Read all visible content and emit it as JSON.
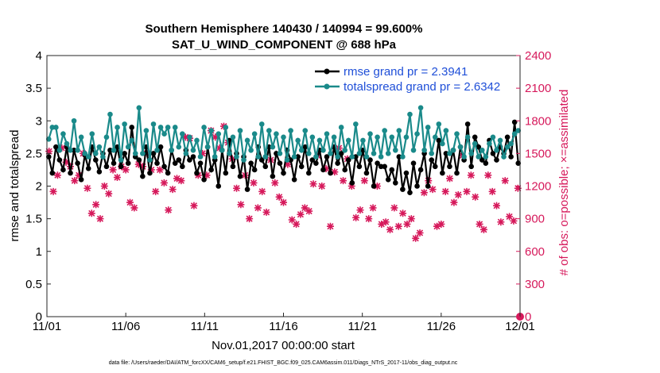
{
  "chart_data": {
    "type": "line",
    "title_line1": "Southern Hemisphere 140430 / 140994 = 99.600%",
    "title_line2": "SAT_U_WIND_COMPONENT @ 688 hPa",
    "xlabel": "Nov.01,2017 00:00:00 start",
    "ylabel_left": "rmse and totalspread",
    "ylabel_right": "# of obs: o=possible; ×=assimilated",
    "footer": "data file: /Users/raeder/DAI/ATM_forcXX/CAM6_setup/f.e21.FHIST_BGC.f09_025.CAM6assim.011/Diags_NTrS_2017-11/obs_diag_output.nc",
    "xlim": [
      0,
      30
    ],
    "ylim_left": [
      0,
      4
    ],
    "ylim_right": [
      0,
      2400
    ],
    "x_ticks": [
      0,
      5,
      10,
      15,
      20,
      25,
      30
    ],
    "x_tick_labels": [
      "11/01",
      "11/06",
      "11/11",
      "11/16",
      "11/21",
      "11/26",
      "12/01"
    ],
    "y_left_ticks": [
      "0",
      "0.5",
      "1",
      "1.5",
      "2",
      "2.5",
      "3",
      "3.5",
      "4"
    ],
    "y_right_ticks": [
      "0",
      "300",
      "600",
      "900",
      "1200",
      "1500",
      "1800",
      "2100",
      "2400"
    ],
    "colors": {
      "rmse": "#000000",
      "spread": "#1a8a8a",
      "obs": "#d6195b",
      "right_axis": "#d6195b",
      "legend_text": "#1f4fd8"
    },
    "legend": [
      {
        "label": "rmse grand pr = 2.3941",
        "color": "#000000"
      },
      {
        "label": "totalspread grand pr = 2.6342",
        "color": "#1a8a8a"
      }
    ],
    "series": [
      {
        "name": "rmse",
        "axis": "left",
        "values": [
          2.45,
          2.2,
          2.6,
          2.4,
          2.25,
          2.6,
          2.2,
          2.55,
          2.35,
          2.1,
          2.48,
          2.27,
          2.6,
          2.4,
          2.22,
          2.5,
          2.3,
          2.55,
          2.35,
          2.6,
          2.3,
          2.5,
          2.35,
          2.9,
          2.45,
          2.4,
          2.15,
          2.6,
          2.2,
          2.5,
          2.35,
          2.6,
          2.3,
          2.2,
          2.55,
          2.35,
          2.4,
          2.3,
          2.55,
          2.4,
          2.45,
          2.2,
          2.35,
          2.1,
          2.6,
          2.25,
          2.4,
          2.0,
          2.55,
          2.2,
          2.7,
          2.3,
          2.5,
          2.15,
          2.45,
          1.95,
          2.35,
          2.25,
          2.6,
          2.4,
          2.3,
          2.6,
          2.15,
          2.5,
          2.35,
          2.2,
          2.55,
          2.4,
          2.1,
          2.45,
          2.3,
          2.6,
          2.2,
          2.4,
          2.35,
          2.55,
          2.25,
          2.45,
          2.2,
          2.6,
          2.35,
          2.5,
          2.25,
          2.4,
          2.05,
          2.45,
          2.3,
          2.55,
          2.2,
          2.4,
          2.0,
          2.35,
          2.3,
          2.3,
          2.1,
          2.25,
          2.05,
          2.45,
          1.95,
          2.2,
          1.9,
          2.35,
          2.0,
          2.25,
          2.5,
          2.0,
          2.4,
          2.3,
          2.7,
          2.2,
          2.5,
          2.3,
          2.55,
          2.2,
          2.6,
          2.4,
          2.95,
          2.3,
          2.75,
          2.6,
          2.4,
          2.35,
          2.7,
          2.5,
          2.4,
          2.6,
          2.5,
          2.75,
          2.45,
          2.98,
          2.35
        ]
      },
      {
        "name": "totalspread",
        "axis": "left",
        "values": [
          2.72,
          2.9,
          2.9,
          2.55,
          2.8,
          2.65,
          2.55,
          3.0,
          2.55,
          2.75,
          2.5,
          2.45,
          2.8,
          2.5,
          2.6,
          2.45,
          2.75,
          3.1,
          2.55,
          2.9,
          2.4,
          2.95,
          2.6,
          2.7,
          2.5,
          3.2,
          2.5,
          2.85,
          2.4,
          2.95,
          2.55,
          2.9,
          2.8,
          2.9,
          2.55,
          2.9,
          2.6,
          2.8,
          2.5,
          2.75,
          2.55,
          2.7,
          2.45,
          2.9,
          2.6,
          2.85,
          2.45,
          2.8,
          2.55,
          2.9,
          2.5,
          2.75,
          2.45,
          2.85,
          2.4,
          2.7,
          2.55,
          2.8,
          2.45,
          2.95,
          2.45,
          2.85,
          2.6,
          2.8,
          2.5,
          2.75,
          2.4,
          2.85,
          2.45,
          2.7,
          2.55,
          2.85,
          2.5,
          2.75,
          2.45,
          2.7,
          2.55,
          2.8,
          2.5,
          2.75,
          2.45,
          2.9,
          2.55,
          2.7,
          2.45,
          2.95,
          2.5,
          2.7,
          2.45,
          2.8,
          2.5,
          2.75,
          2.45,
          2.85,
          2.5,
          2.75,
          2.55,
          2.85,
          2.45,
          2.75,
          3.1,
          2.55,
          2.8,
          3.2,
          2.55,
          2.9,
          2.5,
          2.75,
          2.95,
          2.65,
          2.85,
          2.5,
          2.55,
          2.8,
          2.6,
          2.45,
          2.75,
          2.5,
          2.65,
          2.45,
          2.55,
          2.45,
          2.65,
          2.75,
          2.55,
          2.7,
          2.45,
          2.6,
          2.65,
          2.8,
          2.85
        ]
      },
      {
        "name": "assimilated",
        "axis": "right",
        "values": [
          1520,
          1150,
          1300,
          1550,
          1420,
          1380,
          1250,
          1300,
          1500,
          1180,
          950,
          1030,
          900,
          1200,
          1130,
          1350,
          1280,
          1380,
          1350,
          1050,
          1000,
          1400,
          1380,
          1500,
          1350,
          1150,
          1350,
          1230,
          980,
          1170,
          1270,
          1250,
          1650,
          1640,
          1020,
          1300,
          1500,
          1300,
          1710,
          1650,
          1550,
          1750,
          1600,
          1450,
          1180,
          1030,
          1300,
          900,
          1230,
          1000,
          1150,
          960,
          1440,
          1230,
          1100,
          1050,
          1400,
          890,
          850,
          940,
          1000,
          970,
          1220,
          1480,
          1200,
          1360,
          830,
          1330,
          1550,
          1250,
          1450,
          1200,
          910,
          980,
          1250,
          900,
          1000,
          1200,
          850,
          870,
          800,
          1000,
          830,
          950,
          850,
          900,
          720,
          770,
          1140,
          1250,
          1170,
          830,
          850,
          1150,
          1270,
          1050,
          1120,
          1480,
          1150,
          1300,
          1100,
          850,
          800,
          1300,
          1150,
          1020,
          870,
          1250,
          920,
          880,
          1180
        ]
      }
    ]
  }
}
